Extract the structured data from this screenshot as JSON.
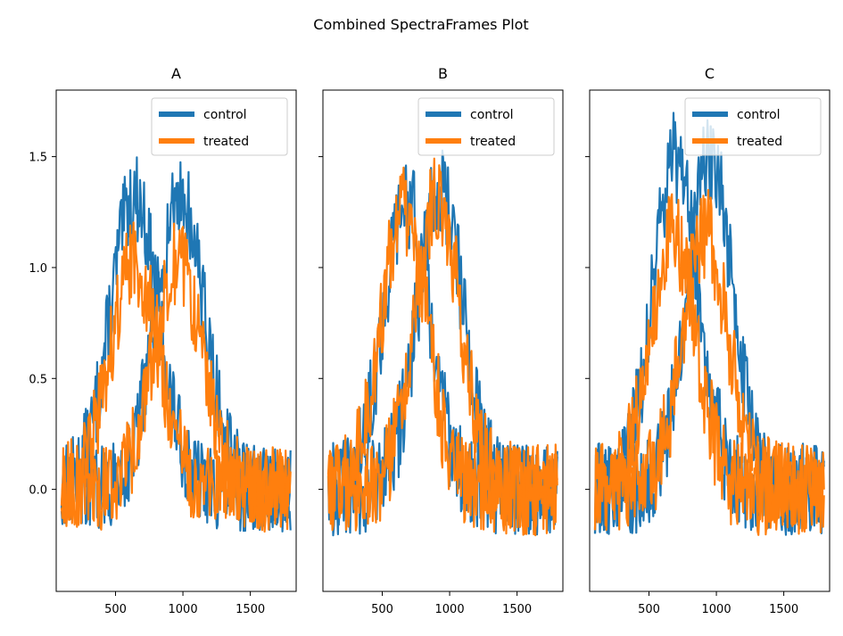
{
  "title": "Combined SpectraFrames Plot",
  "chart_data": {
    "type": "line",
    "xlabel": "",
    "ylabel": "",
    "xlim": [
      60,
      1840
    ],
    "ylim": [
      -0.46,
      1.8
    ],
    "xticks": [
      500,
      1000,
      1500
    ],
    "yticks": [
      0.0,
      0.5,
      1.0,
      1.5
    ],
    "ytick_labels": [
      "0.0",
      "0.5",
      "1.0",
      "1.5"
    ],
    "colors": {
      "control": "#1f77b4",
      "treated": "#ff7f0e"
    },
    "legend_position": "upper right",
    "legend": [
      "control",
      "treated"
    ],
    "panels": [
      {
        "title": "A",
        "series": [
          {
            "name": "control",
            "peaks": [
              {
                "center": 640,
                "amp": 1.32,
                "width": 180
              },
              {
                "center": 980,
                "amp": 1.32,
                "width": 180
              }
            ],
            "noise": 0.12
          },
          {
            "name": "treated",
            "peaks": [
              {
                "center": 640,
                "amp": 1.02,
                "width": 180
              },
              {
                "center": 960,
                "amp": 1.02,
                "width": 180
              }
            ],
            "noise": 0.12
          }
        ]
      },
      {
        "title": "B",
        "series": [
          {
            "name": "control",
            "peaks": [
              {
                "center": 680,
                "amp": 1.3,
                "width": 170
              },
              {
                "center": 930,
                "amp": 1.35,
                "width": 170
              }
            ],
            "noise": 0.13
          },
          {
            "name": "treated",
            "peaks": [
              {
                "center": 660,
                "amp": 1.25,
                "width": 170
              },
              {
                "center": 910,
                "amp": 1.3,
                "width": 170
              }
            ],
            "noise": 0.13
          }
        ]
      },
      {
        "title": "C",
        "series": [
          {
            "name": "control",
            "peaks": [
              {
                "center": 700,
                "amp": 1.5,
                "width": 170
              },
              {
                "center": 950,
                "amp": 1.5,
                "width": 170
              }
            ],
            "noise": 0.13
          },
          {
            "name": "treated",
            "peaks": [
              {
                "center": 680,
                "amp": 1.15,
                "width": 170
              },
              {
                "center": 920,
                "amp": 1.15,
                "width": 170
              }
            ],
            "noise": 0.13
          }
        ]
      }
    ]
  }
}
